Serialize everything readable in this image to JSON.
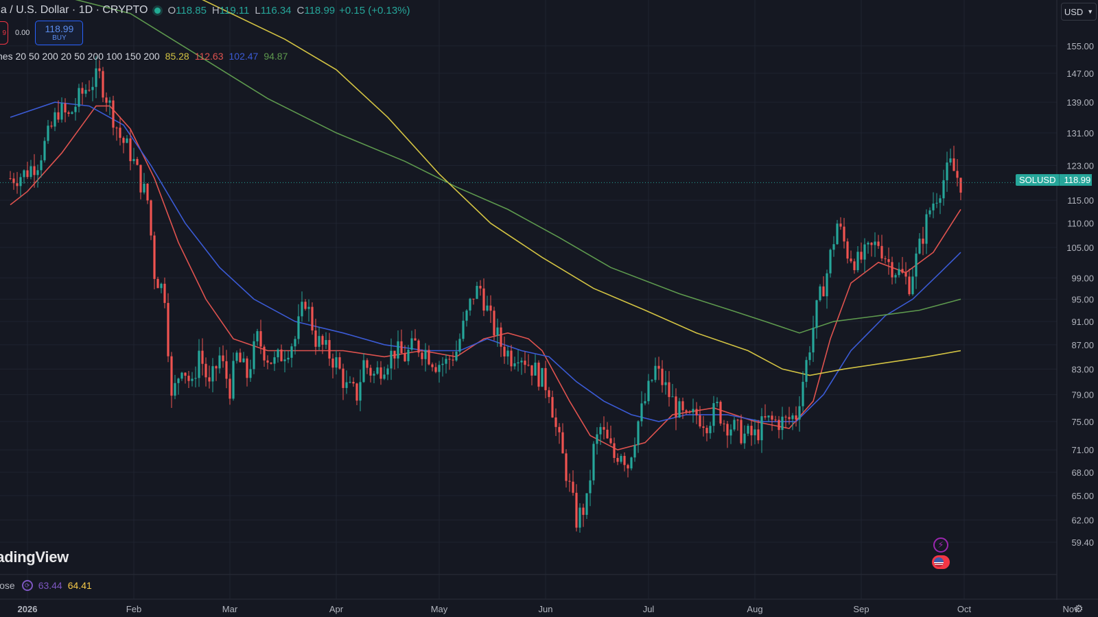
{
  "header": {
    "title": "na / U.S. Dollar · 1D · CRYPTO",
    "ohlc": {
      "o_key": "O",
      "o": "118.85",
      "h_key": "H",
      "h": "119.11",
      "l_key": "L",
      "l": "116.34",
      "c_key": "C",
      "c": "118.99",
      "change": "+0.15 (+0.13%)"
    },
    "sell_fragment": "9",
    "spread": "0.00",
    "buy_price": "118.99",
    "buy_label": "BUY"
  },
  "ma_legend": {
    "name": "nes 20 50 200 20 50 200 100 150 200",
    "values": [
      {
        "value": "85.28",
        "color": "#d4c443"
      },
      {
        "value": "112.63",
        "color": "#e0534f"
      },
      {
        "value": "102.47",
        "color": "#3b5bd6"
      },
      {
        "value": "94.87",
        "color": "#5e9a4e"
      }
    ]
  },
  "watermark": "radingView",
  "bottom_indicator": {
    "name": "lose",
    "value1": "63.44",
    "value2": "64.41"
  },
  "currency": "USD",
  "price_tag": {
    "symbol": "SOLUSD",
    "value": "118.99"
  },
  "colors": {
    "up": "#26a69a",
    "down": "#ef5350",
    "background": "#151822",
    "grid": "#1f2330"
  },
  "chart_data": {
    "type": "candlestick",
    "symbol": "SOLUSD",
    "interval": "1D",
    "y_scale": "log",
    "ylim": [
      57.5,
      160
    ],
    "y_ticks": [
      "155.00",
      "147.00",
      "139.00",
      "131.00",
      "123.00",
      "115.00",
      "110.00",
      "105.00",
      "99.00",
      "95.00",
      "91.00",
      "87.00",
      "83.00",
      "79.00",
      "75.00",
      "71.00",
      "68.00",
      "65.00",
      "62.00",
      "59.40"
    ],
    "x_ticks": [
      {
        "label": "2026",
        "day": 0
      },
      {
        "label": "Feb",
        "day": 31
      },
      {
        "label": "Mar",
        "day": 59
      },
      {
        "label": "Apr",
        "day": 90
      },
      {
        "label": "May",
        "day": 120
      },
      {
        "label": "Jun",
        "day": 151
      },
      {
        "label": "Jul",
        "day": 181
      },
      {
        "label": "Aug",
        "day": 212
      },
      {
        "label": "Sep",
        "day": 243
      },
      {
        "label": "Oct",
        "day": 273
      },
      {
        "label": "Nov",
        "day": 304
      }
    ],
    "close_anchors": [
      [
        -5,
        120
      ],
      [
        -1,
        121
      ],
      [
        3,
        124
      ],
      [
        6,
        130
      ],
      [
        9,
        137
      ],
      [
        12,
        135
      ],
      [
        15,
        140
      ],
      [
        18,
        144
      ],
      [
        21,
        146
      ],
      [
        24,
        138
      ],
      [
        27,
        130
      ],
      [
        30,
        126
      ],
      [
        33,
        119
      ],
      [
        35,
        115
      ],
      [
        37,
        100
      ],
      [
        40,
        96
      ],
      [
        42,
        78
      ],
      [
        45,
        84
      ],
      [
        48,
        80
      ],
      [
        50,
        86
      ],
      [
        53,
        80
      ],
      [
        56,
        85
      ],
      [
        59,
        80
      ],
      [
        61,
        85
      ],
      [
        64,
        82
      ],
      [
        67,
        88
      ],
      [
        70,
        85
      ],
      [
        72,
        84
      ],
      [
        75,
        86
      ],
      [
        78,
        88
      ],
      [
        81,
        95
      ],
      [
        84,
        88
      ],
      [
        87,
        86
      ],
      [
        90,
        84
      ],
      [
        93,
        80
      ],
      [
        96,
        79
      ],
      [
        98,
        84
      ],
      [
        101,
        82
      ],
      [
        104,
        84
      ],
      [
        107,
        86
      ],
      [
        110,
        85
      ],
      [
        113,
        87
      ],
      [
        116,
        86
      ],
      [
        119,
        84
      ],
      [
        122,
        84
      ],
      [
        125,
        86
      ],
      [
        127,
        90
      ],
      [
        130,
        96
      ],
      [
        132,
        97
      ],
      [
        135,
        91
      ],
      [
        138,
        87
      ],
      [
        141,
        85
      ],
      [
        143,
        86
      ],
      [
        146,
        84
      ],
      [
        149,
        82
      ],
      [
        152,
        80
      ],
      [
        154,
        74
      ],
      [
        157,
        68
      ],
      [
        160,
        62
      ],
      [
        163,
        64
      ],
      [
        165,
        71
      ],
      [
        167,
        74
      ],
      [
        169,
        72
      ],
      [
        171,
        70
      ],
      [
        173,
        71
      ],
      [
        175,
        69
      ],
      [
        178,
        75
      ],
      [
        180,
        78
      ],
      [
        183,
        83
      ],
      [
        186,
        80
      ],
      [
        189,
        77
      ],
      [
        192,
        75
      ],
      [
        195,
        76
      ],
      [
        198,
        75
      ],
      [
        201,
        77
      ],
      [
        203,
        75
      ],
      [
        206,
        74
      ],
      [
        209,
        73
      ],
      [
        212,
        73
      ],
      [
        215,
        75
      ],
      [
        218,
        75
      ],
      [
        221,
        75
      ],
      [
        224,
        76
      ],
      [
        227,
        84
      ],
      [
        230,
        93
      ],
      [
        233,
        100
      ],
      [
        236,
        110
      ],
      [
        239,
        104
      ],
      [
        242,
        102
      ],
      [
        245,
        104
      ],
      [
        248,
        106
      ],
      [
        251,
        102
      ],
      [
        254,
        100
      ],
      [
        257,
        98
      ],
      [
        260,
        105
      ],
      [
        263,
        113
      ],
      [
        266,
        118
      ],
      [
        269,
        123
      ],
      [
        272,
        119
      ]
    ],
    "moving_averages": [
      {
        "label": "MA 20",
        "color": "#e0534f",
        "points": [
          [
            -5,
            114
          ],
          [
            0,
            117
          ],
          [
            10,
            126
          ],
          [
            20,
            138
          ],
          [
            24,
            138
          ],
          [
            30,
            132
          ],
          [
            37,
            120
          ],
          [
            44,
            106
          ],
          [
            52,
            95
          ],
          [
            60,
            88
          ],
          [
            70,
            86
          ],
          [
            80,
            86
          ],
          [
            92,
            86
          ],
          [
            104,
            85
          ],
          [
            115,
            86
          ],
          [
            125,
            85
          ],
          [
            133,
            88
          ],
          [
            140,
            89
          ],
          [
            146,
            88
          ],
          [
            150,
            86
          ],
          [
            158,
            78
          ],
          [
            164,
            73
          ],
          [
            172,
            71
          ],
          [
            180,
            72
          ],
          [
            188,
            76
          ],
          [
            200,
            77
          ],
          [
            212,
            75
          ],
          [
            222,
            74
          ],
          [
            229,
            78
          ],
          [
            234,
            88
          ],
          [
            240,
            98
          ],
          [
            248,
            102
          ],
          [
            256,
            100
          ],
          [
            264,
            104
          ],
          [
            272,
            113
          ]
        ]
      },
      {
        "label": "MA 50",
        "color": "#3b5bd6",
        "points": [
          [
            -5,
            135
          ],
          [
            8,
            139
          ],
          [
            18,
            138
          ],
          [
            28,
            133
          ],
          [
            36,
            123
          ],
          [
            46,
            110
          ],
          [
            56,
            101
          ],
          [
            66,
            95
          ],
          [
            78,
            91
          ],
          [
            92,
            89
          ],
          [
            104,
            87
          ],
          [
            116,
            86
          ],
          [
            126,
            86
          ],
          [
            134,
            88
          ],
          [
            144,
            86
          ],
          [
            152,
            85
          ],
          [
            160,
            81
          ],
          [
            168,
            78
          ],
          [
            176,
            76
          ],
          [
            184,
            75
          ],
          [
            192,
            76
          ],
          [
            204,
            76
          ],
          [
            214,
            75
          ],
          [
            224,
            75
          ],
          [
            232,
            79
          ],
          [
            240,
            86
          ],
          [
            250,
            92
          ],
          [
            258,
            95
          ],
          [
            266,
            100
          ],
          [
            272,
            104
          ]
        ]
      },
      {
        "label": "MA 100",
        "color": "#5e9a4e",
        "points": [
          [
            -5,
            175
          ],
          [
            30,
            165
          ],
          [
            50,
            152
          ],
          [
            70,
            140
          ],
          [
            90,
            131
          ],
          [
            110,
            124
          ],
          [
            125,
            118
          ],
          [
            140,
            113
          ],
          [
            155,
            107
          ],
          [
            170,
            101
          ],
          [
            190,
            96
          ],
          [
            205,
            93
          ],
          [
            215,
            91
          ],
          [
            225,
            89
          ],
          [
            235,
            91
          ],
          [
            248,
            92
          ],
          [
            260,
            93
          ],
          [
            272,
            95
          ]
        ]
      },
      {
        "label": "MA 200",
        "color": "#d4c443",
        "points": [
          [
            -5,
            185
          ],
          [
            20,
            182
          ],
          [
            50,
            170
          ],
          [
            75,
            157
          ],
          [
            90,
            148
          ],
          [
            105,
            135
          ],
          [
            120,
            121
          ],
          [
            135,
            110
          ],
          [
            150,
            103
          ],
          [
            165,
            97
          ],
          [
            180,
            93
          ],
          [
            195,
            89
          ],
          [
            210,
            86
          ],
          [
            220,
            83
          ],
          [
            228,
            82
          ],
          [
            238,
            83
          ],
          [
            250,
            84
          ],
          [
            262,
            85
          ],
          [
            272,
            86
          ]
        ]
      }
    ]
  }
}
